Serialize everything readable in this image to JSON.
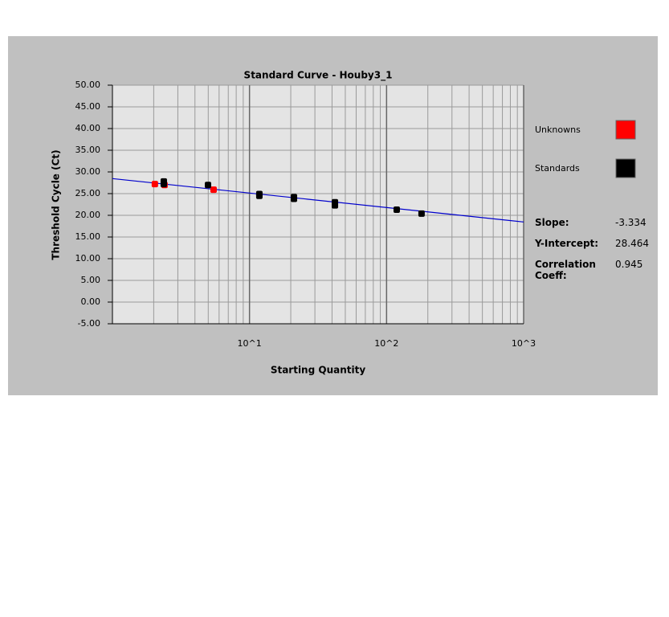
{
  "chart_data": {
    "type": "scatter",
    "title": "Standard Curve - Houby3_1",
    "x_label": "Starting Quantity",
    "y_label": "Threshold Cycle (Ct)",
    "log_x": true,
    "grid": true,
    "xlim": [
      1,
      1000
    ],
    "ylim": [
      -5,
      50
    ],
    "xticks": [
      {
        "value": 10,
        "label": "10^1"
      },
      {
        "value": 100,
        "label": "10^2"
      },
      {
        "value": 1000,
        "label": "10^3"
      }
    ],
    "x_minor_gridlines": [
      2,
      3,
      4,
      5,
      6,
      7,
      8,
      9,
      20,
      30,
      40,
      50,
      60,
      70,
      80,
      90,
      200,
      300,
      400,
      500,
      600,
      700,
      800,
      900
    ],
    "yticks": [
      {
        "value": 50,
        "label": "50.00"
      },
      {
        "value": 45,
        "label": "45.00"
      },
      {
        "value": 40,
        "label": "40.00"
      },
      {
        "value": 35,
        "label": "35.00"
      },
      {
        "value": 30,
        "label": "30.00"
      },
      {
        "value": 25,
        "label": "25.00"
      },
      {
        "value": 20,
        "label": "20.00"
      },
      {
        "value": 15,
        "label": "15.00"
      },
      {
        "value": 10,
        "label": "10.00"
      },
      {
        "value": 5,
        "label": "5.00"
      },
      {
        "value": 0,
        "label": "0.00"
      },
      {
        "value": -5,
        "label": "-5.00"
      }
    ],
    "series": [
      {
        "name": "Unknowns",
        "color": "#ff0000",
        "x": [
          2.04,
          2.4,
          5.47
        ],
        "values": [
          27.2,
          27.0,
          25.9
        ]
      },
      {
        "name": "Standards",
        "color": "#000000",
        "x": [
          2.37,
          2.37,
          4.98,
          11.8,
          11.8,
          21.1,
          21.1,
          42,
          42,
          118.6,
          180
        ],
        "values": [
          27.8,
          27.2,
          27.0,
          24.9,
          24.5,
          24.2,
          23.8,
          23.0,
          22.3,
          21.3,
          20.4
        ]
      }
    ],
    "fit_line_color": "#0000cc",
    "stats": [
      {
        "label": "Slope:",
        "value": -3.334
      },
      {
        "label": "Y-Intercept:",
        "value": 28.464
      },
      {
        "label": "Correlation Coeff:",
        "value": 0.945
      }
    ]
  }
}
